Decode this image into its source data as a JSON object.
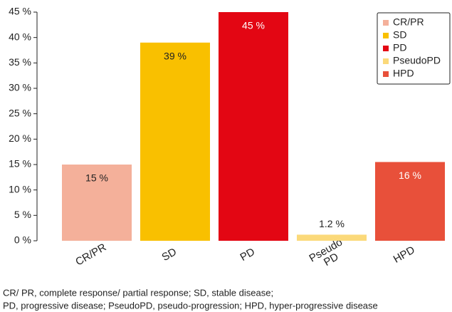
{
  "chart_data": {
    "type": "bar",
    "categories": [
      "CR/PR",
      "SD",
      "PD",
      "Pseudo\nPD",
      "HPD"
    ],
    "values": [
      15,
      39,
      45,
      1.2,
      15.5
    ],
    "value_labels": [
      "15 %",
      "39 %",
      "45 %",
      "1.2 %",
      "16 %"
    ],
    "colors": [
      "#f4b09a",
      "#f9c000",
      "#e30613",
      "#fbd97a",
      "#e8503a"
    ],
    "label_colors": [
      "#222222",
      "#222222",
      "#ffffff",
      "#222222",
      "#ffffff"
    ],
    "legend": [
      "CR/PR",
      "SD",
      "PD",
      "PseudoPD",
      "HPD"
    ],
    "legend_position": "upper right",
    "ylim": [
      0,
      45
    ],
    "yticks": [
      {
        "value": 0,
        "label": "0 %"
      },
      {
        "value": 5,
        "label": "5 %"
      },
      {
        "value": 10,
        "label": "10 %"
      },
      {
        "value": 15,
        "label": "15 %"
      },
      {
        "value": 20,
        "label": "20 %"
      },
      {
        "value": 25,
        "label": "25 %"
      },
      {
        "value": 30,
        "label": "30 %"
      },
      {
        "value": 35,
        "label": "35 %"
      },
      {
        "value": 40,
        "label": "40 %"
      },
      {
        "value": 45,
        "label": "45 %"
      }
    ],
    "footnote": [
      "CR/ PR, complete response/ partial response; SD, stable disease;",
      "PD, progressive disease; PseudoPD, pseudo-progression; HPD, hyper-progressive disease"
    ]
  }
}
